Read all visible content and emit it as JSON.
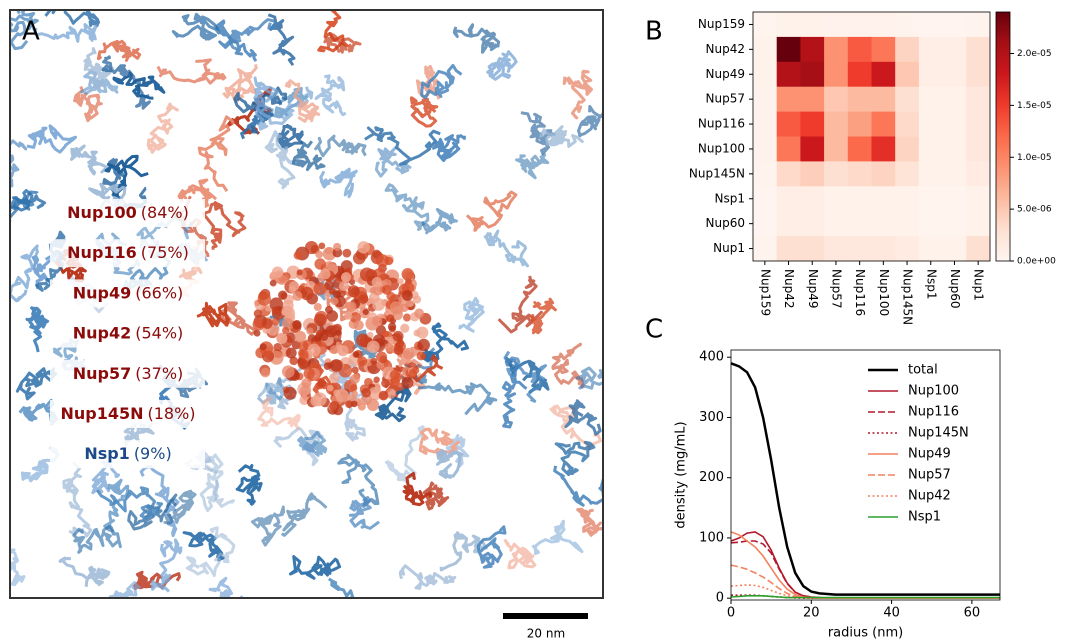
{
  "panel_a": {
    "letter": "A",
    "scale_bar": "20 nm",
    "labels": [
      {
        "name": "Nup100",
        "pct": "(84%)",
        "color": "#8b0a0a"
      },
      {
        "name": "Nup116",
        "pct": "(75%)",
        "color": "#8b0a0a"
      },
      {
        "name": "Nup49",
        "pct": "(66%)",
        "color": "#8b0a0a"
      },
      {
        "name": "Nup42",
        "pct": "(54%)",
        "color": "#8b0a0a"
      },
      {
        "name": "Nup57",
        "pct": "(37%)",
        "color": "#8b0a0a"
      },
      {
        "name": "Nup145N",
        "pct": "(18%)",
        "color": "#8b0a0a"
      },
      {
        "name": "Nsp1",
        "pct": "(9%)",
        "color": "#1c4a8a"
      }
    ]
  },
  "chart_data": [
    {
      "type": "heatmap",
      "panel_label": "B",
      "colormap": "Reds",
      "x_categories": [
        "Nup159",
        "Nup42",
        "Nup49",
        "Nup57",
        "Nup116",
        "Nup100",
        "Nup145N",
        "Nsp1",
        "Nup60",
        "Nup1"
      ],
      "y_categories": [
        "Nup159",
        "Nup42",
        "Nup49",
        "Nup57",
        "Nup116",
        "Nup100",
        "Nup145N",
        "Nsp1",
        "Nup60",
        "Nup1"
      ],
      "values": [
        [
          2e-07,
          5e-07,
          5e-07,
          4e-07,
          4e-07,
          4e-07,
          3e-07,
          1e-07,
          1e-07,
          3e-07
        ],
        [
          5e-07,
          2.4e-05,
          2e-05,
          9e-06,
          1.3e-05,
          1.1e-05,
          4e-06,
          1e-06,
          1e-06,
          3e-06
        ],
        [
          5e-07,
          2e-05,
          2.1e-05,
          9e-06,
          1.5e-05,
          1.8e-05,
          5e-06,
          1e-06,
          1e-06,
          3e-06
        ],
        [
          4e-07,
          9e-06,
          9e-06,
          5e-06,
          6e-06,
          6e-06,
          3e-06,
          5e-07,
          5e-07,
          2e-06
        ],
        [
          4e-07,
          1.3e-05,
          1.5e-05,
          6e-06,
          8e-06,
          1.1e-05,
          3.5e-06,
          5e-07,
          5e-07,
          2e-06
        ],
        [
          4e-07,
          1.1e-05,
          1.8e-05,
          6e-06,
          1.2e-05,
          1.6e-05,
          4e-06,
          5e-07,
          5e-07,
          2e-06
        ],
        [
          3e-07,
          3.5e-06,
          4.5e-06,
          3e-06,
          3.5e-06,
          4e-06,
          2.5e-06,
          5e-07,
          5e-07,
          1.5e-06
        ],
        [
          1e-07,
          1e-06,
          1e-06,
          5e-07,
          5e-07,
          5e-07,
          5e-07,
          2e-07,
          2e-07,
          5e-07
        ],
        [
          1e-07,
          1e-06,
          1e-06,
          5e-07,
          5e-07,
          5e-07,
          5e-07,
          2e-07,
          2e-07,
          5e-07
        ],
        [
          3e-07,
          3e-06,
          3e-06,
          2e-06,
          2e-06,
          2e-06,
          1.5e-06,
          5e-07,
          5e-07,
          3e-06
        ]
      ],
      "zlim": [
        0,
        2.4e-05
      ],
      "zticks": [
        {
          "value": 0,
          "label": "0.0e+00"
        },
        {
          "value": 5e-06,
          "label": "5.0e-06"
        },
        {
          "value": 1e-05,
          "label": "1.0e-05"
        },
        {
          "value": 1.5e-05,
          "label": "1.5e-05"
        },
        {
          "value": 2e-05,
          "label": "2.0e-05"
        }
      ]
    },
    {
      "type": "line",
      "panel_label": "C",
      "x_label": "radius (nm)",
      "y_label": "density (mg/mL)",
      "legend": "upper right",
      "x": [
        0,
        2,
        4,
        6,
        8,
        10,
        12,
        14,
        16,
        18,
        20,
        22,
        24,
        26,
        28,
        30,
        40,
        50,
        60,
        67
      ],
      "xlim": [
        0,
        67
      ],
      "xticks": [
        0,
        20,
        40,
        60
      ],
      "ylim": [
        -3,
        412
      ],
      "yticks": [
        0,
        100,
        200,
        300,
        400
      ],
      "series": [
        {
          "name": "total",
          "color": "#000000",
          "dash": "solid",
          "width": 2.5,
          "values": [
            390,
            385,
            375,
            350,
            300,
            230,
            150,
            85,
            42,
            20,
            11,
            8,
            7,
            6,
            6,
            6,
            6,
            6,
            6,
            6
          ]
        },
        {
          "name": "Nup100",
          "color": "#b2182b",
          "dash": "solid",
          "width": 1.6,
          "values": [
            95,
            100,
            108,
            110,
            102,
            80,
            50,
            25,
            10,
            4,
            2,
            1,
            0.5,
            0,
            0,
            0,
            0,
            0,
            0,
            0
          ]
        },
        {
          "name": "Nup116",
          "color": "#b2182b",
          "dash": "dashed",
          "width": 1.6,
          "values": [
            92,
            93,
            95,
            95,
            90,
            75,
            48,
            24,
            10,
            4,
            2,
            1,
            0.5,
            0,
            0,
            0,
            0,
            0,
            0,
            0
          ]
        },
        {
          "name": "Nup145N",
          "color": "#b2182b",
          "dash": "dotted",
          "width": 1.6,
          "values": [
            5,
            5,
            5,
            5,
            4,
            3,
            2,
            1,
            0.5,
            0,
            0,
            0,
            0,
            0,
            0,
            0,
            0,
            0,
            0,
            0
          ]
        },
        {
          "name": "Nup49",
          "color": "#f4825e",
          "dash": "solid",
          "width": 1.6,
          "values": [
            110,
            105,
            95,
            85,
            70,
            50,
            30,
            15,
            6,
            2,
            1,
            0,
            0,
            0,
            0,
            0,
            0,
            0,
            0,
            0
          ]
        },
        {
          "name": "Nup57",
          "color": "#f4825e",
          "dash": "dashed",
          "width": 1.6,
          "values": [
            55,
            52,
            48,
            42,
            35,
            26,
            16,
            8,
            3,
            1,
            0,
            0,
            0,
            0,
            0,
            0,
            0,
            0,
            0,
            0
          ]
        },
        {
          "name": "Nup42",
          "color": "#f4825e",
          "dash": "dotted",
          "width": 1.6,
          "values": [
            20,
            21,
            22,
            21,
            18,
            13,
            8,
            4,
            2,
            1,
            0,
            0,
            0,
            0,
            0,
            0,
            0,
            0,
            0,
            0
          ]
        },
        {
          "name": "Nsp1",
          "color": "#2ca02c",
          "dash": "solid",
          "width": 1.6,
          "values": [
            2,
            3,
            4,
            4,
            4,
            3,
            2,
            1,
            1,
            1,
            1,
            1,
            1,
            1,
            1,
            1,
            1,
            1,
            1,
            1
          ]
        }
      ]
    }
  ]
}
